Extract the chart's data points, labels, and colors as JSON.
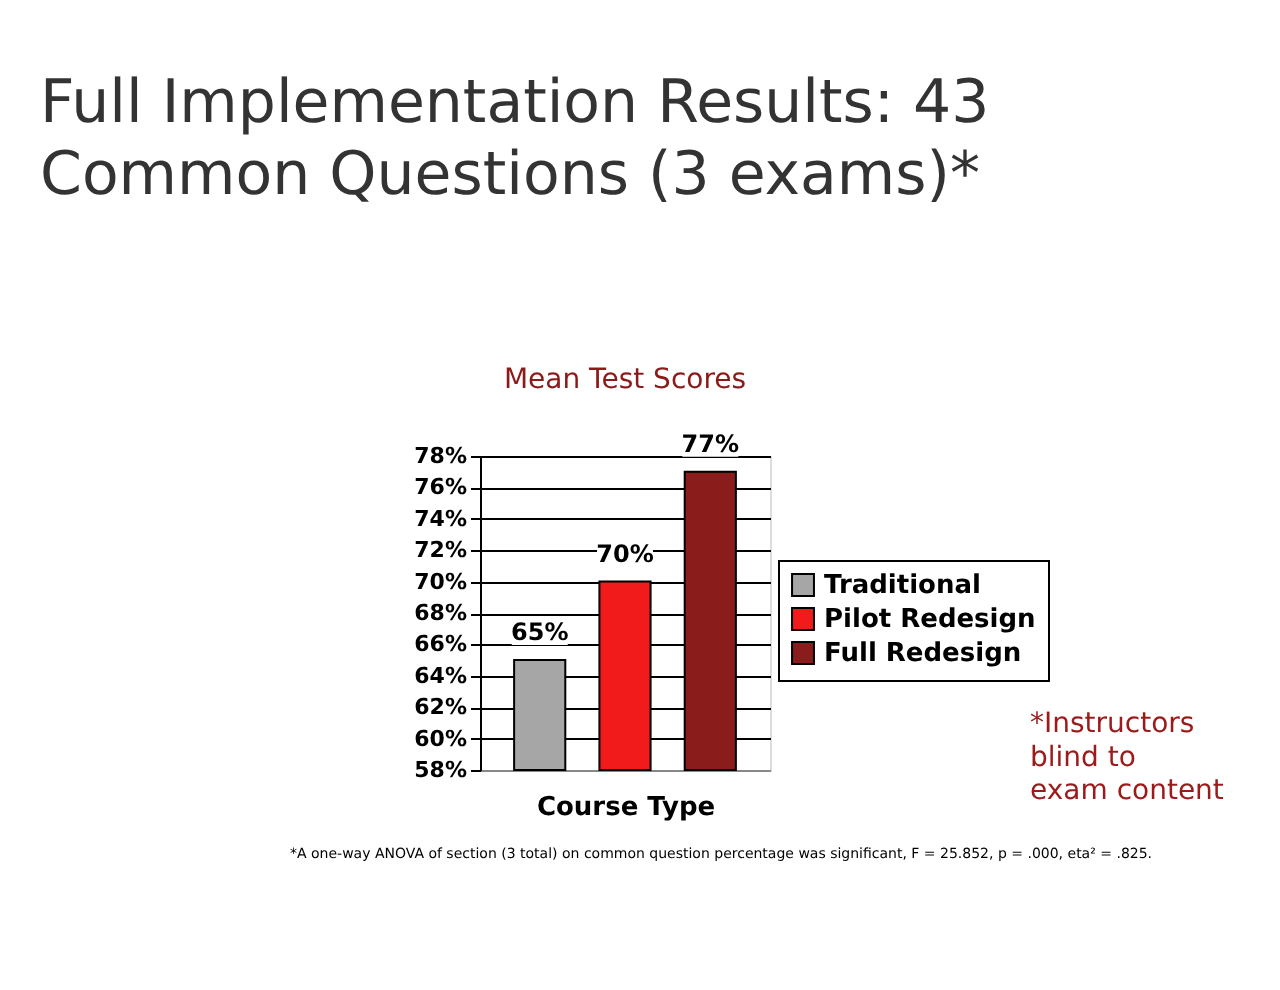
{
  "chart_data": {
    "type": "bar",
    "title": "Full Implementation Results:  43 Common Questions (3 exams)*",
    "subtitle": "Mean Test Scores",
    "xlabel": "Course Type",
    "categories": [
      null
    ],
    "series": [
      {
        "name": "Traditional",
        "color": "#a6a6a6",
        "values": [
          65
        ],
        "value_labels": [
          "65%"
        ]
      },
      {
        "name": "Pilot Redesign",
        "color": "#f21b1b",
        "values": [
          70
        ],
        "value_labels": [
          "70%"
        ]
      },
      {
        "name": "Full Redesign",
        "color": "#8a1c1c",
        "values": [
          77
        ],
        "value_labels": [
          "77%"
        ]
      }
    ],
    "ylim": [
      58,
      78
    ],
    "yticks": [
      {
        "value": 58,
        "label": "58%"
      },
      {
        "value": 60,
        "label": "60%"
      },
      {
        "value": 62,
        "label": "62%"
      },
      {
        "value": 64,
        "label": "64%"
      },
      {
        "value": 66,
        "label": "66%"
      },
      {
        "value": 68,
        "label": "68%"
      },
      {
        "value": 70,
        "label": "70%"
      },
      {
        "value": 72,
        "label": "72%"
      },
      {
        "value": 74,
        "label": "74%"
      },
      {
        "value": 76,
        "label": "76%"
      },
      {
        "value": 78,
        "label": "78%"
      }
    ],
    "grid": "y",
    "legend": "right",
    "tick_labels": "y",
    "annotations": [
      "*A one-way ANOVA of section (3 total) on common question percentage was significant, F = 25.852, p = .000, eta² = .825.",
      "*Instructors blind to exam content"
    ]
  }
}
